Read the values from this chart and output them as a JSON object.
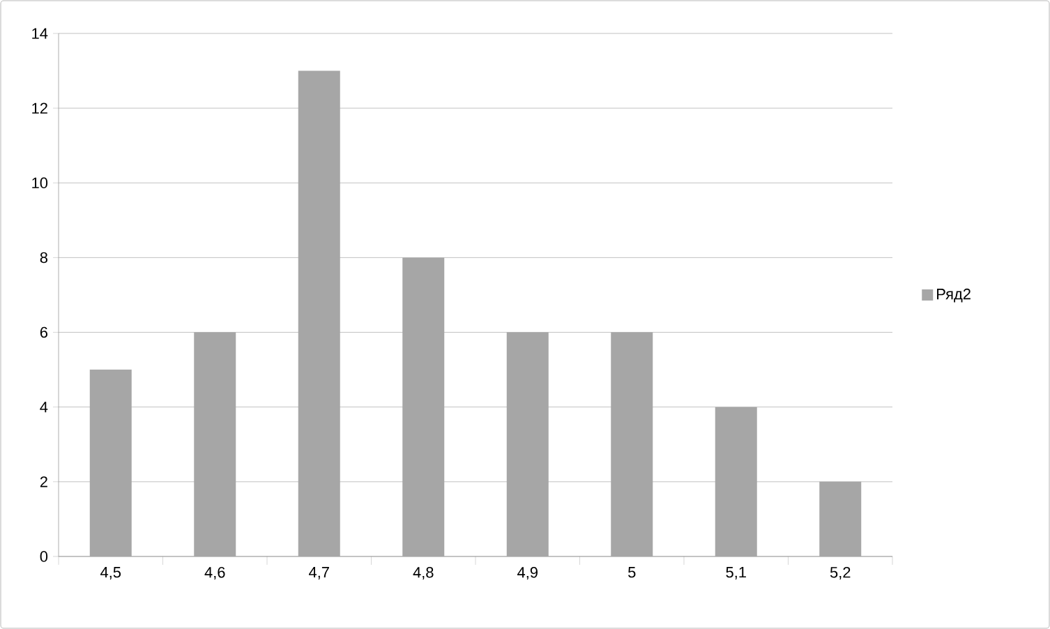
{
  "chart_data": {
    "type": "bar",
    "categories": [
      "4,5",
      "4,6",
      "4,7",
      "4,8",
      "4,9",
      "5",
      "5,1",
      "5,2"
    ],
    "series": [
      {
        "name": "Ряд2",
        "color": "#a6a6a6",
        "values": [
          5,
          6,
          13,
          8,
          6,
          6,
          4,
          2
        ]
      }
    ],
    "ylim": [
      0,
      14
    ],
    "yticks": [
      0,
      2,
      4,
      6,
      8,
      10,
      12,
      14
    ],
    "grid": "y",
    "legend": "right"
  }
}
